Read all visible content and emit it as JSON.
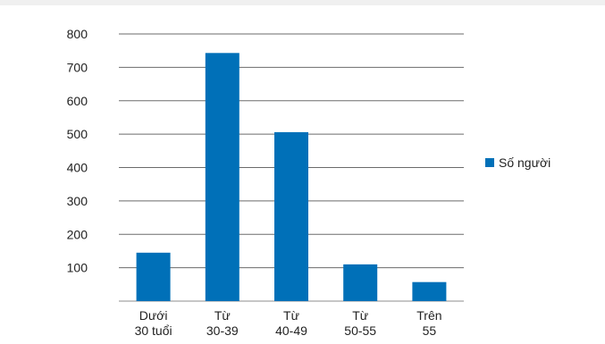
{
  "chart_data": {
    "type": "bar",
    "categories": [
      [
        "Dưới",
        "30 tuổi"
      ],
      [
        "Từ",
        "30-39"
      ],
      [
        "Từ",
        "40-49"
      ],
      [
        "Từ",
        "50-55"
      ],
      [
        "Trên",
        "55"
      ]
    ],
    "series": [
      {
        "name": "Số người",
        "values": [
          145,
          743,
          506,
          110,
          57
        ]
      }
    ],
    "ylim": [
      0,
      800
    ],
    "yticks": [
      100,
      200,
      300,
      400,
      500,
      600,
      700,
      800
    ],
    "grid": true,
    "legend_position": "right",
    "bar_color": "#0070b8",
    "grid_color": "#6b6b6b",
    "axis_color": "#8c8c8c"
  }
}
